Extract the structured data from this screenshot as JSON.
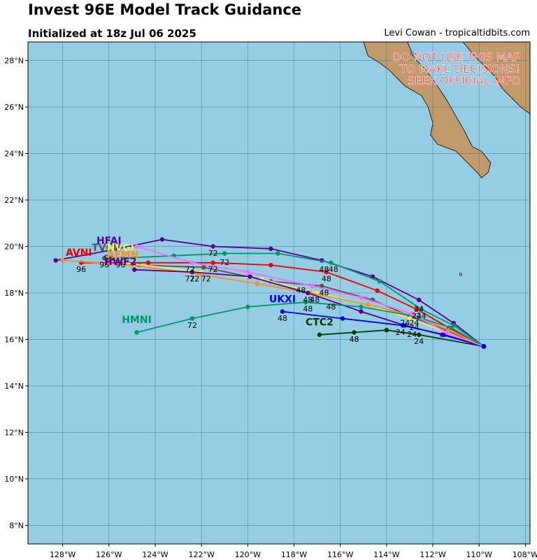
{
  "header": {
    "title": "Invest 96E Model Track Guidance",
    "subtitle": "Initialized at 18z Jul 06 2025",
    "credit": "Levi Cowan - tropicaltidbits.com"
  },
  "warning": [
    "DO NOT USE THIS MAP",
    "TO MAKE DECISIONS!",
    "SEEK OFFICIAL INFO"
  ],
  "colors": {
    "ocean": "#94cde4",
    "land": "#c19a6b",
    "grid": "#3f6f82",
    "warning": "#ff2020"
  },
  "map": {
    "lon_range": [
      -129.5,
      -107.8
    ],
    "lat_range": [
      7.2,
      28.8
    ],
    "lon_ticks": [
      -128,
      -126,
      -124,
      -122,
      -120,
      -118,
      -116,
      -114,
      -112,
      -110,
      -108
    ],
    "lon_tick_labels": [
      "128°W",
      "126°W",
      "124°W",
      "122°W",
      "120°W",
      "118°W",
      "116°W",
      "114°W",
      "112°W",
      "110°W",
      "108°W"
    ],
    "lat_ticks": [
      8,
      10,
      12,
      14,
      16,
      18,
      20,
      22,
      24,
      26,
      28
    ],
    "lat_tick_labels": [
      "8°N",
      "10°N",
      "12°N",
      "14°N",
      "16°N",
      "18°N",
      "20°N",
      "22°N",
      "24°N",
      "26°N",
      "28°N"
    ]
  },
  "chart_data": {
    "type": "map-tracks",
    "start": [
      -109.8,
      15.7
    ],
    "tracks": [
      {
        "name": "HFAI",
        "color": "#5a0096",
        "label_lonlat": [
          -126.0,
          20.1
        ],
        "points": [
          [
            -111.1,
            16.7
          ],
          [
            -112.6,
            17.7
          ],
          [
            -114.6,
            18.7
          ],
          [
            -116.8,
            19.4
          ],
          [
            -119.0,
            19.9
          ],
          [
            -121.5,
            20.0
          ],
          [
            -123.7,
            20.3
          ],
          [
            -125.6,
            19.9
          ],
          [
            -128.3,
            19.4
          ]
        ]
      },
      {
        "name": "AVNI",
        "color": "#f00000",
        "label_lonlat": [
          -127.3,
          19.6
        ],
        "points": [
          [
            -111.3,
            16.5
          ],
          [
            -112.7,
            17.3
          ],
          [
            -114.4,
            18.1
          ],
          [
            -116.6,
            18.9
          ],
          [
            -119.0,
            19.2
          ],
          [
            -121.5,
            19.3
          ],
          [
            -124.3,
            19.3
          ],
          [
            -127.2,
            19.3
          ]
        ]
      },
      {
        "name": "TVCN",
        "color": "#555555",
        "label_lonlat": [
          -126.1,
          19.8
        ],
        "points": [
          [
            -111.4,
            16.4
          ],
          [
            -113.0,
            17.0
          ],
          [
            -114.6,
            17.7
          ],
          [
            -116.8,
            18.3
          ],
          [
            -119.0,
            18.5
          ],
          [
            -121.9,
            19.1
          ],
          [
            -124.7,
            19.2
          ],
          [
            -126.2,
            19.5
          ]
        ]
      },
      {
        "name": "NVGI",
        "color": "#e9ee5a",
        "label_lonlat": [
          -125.5,
          19.8
        ],
        "points": [
          [
            -111.4,
            16.3
          ],
          [
            -113.0,
            16.9
          ],
          [
            -114.8,
            17.5
          ],
          [
            -117.0,
            18.0
          ],
          [
            -119.4,
            18.6
          ],
          [
            -122.0,
            18.9
          ],
          [
            -125.4,
            19.3
          ]
        ]
      },
      {
        "name": "AEMN",
        "color": "#ff8c1a",
        "label_lonlat": [
          -125.4,
          19.5
        ],
        "points": [
          [
            -111.3,
            16.4
          ],
          [
            -112.8,
            17.0
          ],
          [
            -114.8,
            17.5
          ],
          [
            -117.3,
            18.0
          ],
          [
            -119.6,
            18.4
          ],
          [
            -122.1,
            18.8
          ],
          [
            -125.0,
            19.2
          ],
          [
            -128.0,
            19.4
          ]
        ]
      },
      {
        "name": "HWF2",
        "color": "#5a0096",
        "label_lonlat": [
          -125.5,
          19.2
        ],
        "points": [
          [
            -111.6,
            16.2
          ],
          [
            -113.2,
            16.6
          ],
          [
            -115.1,
            17.2
          ],
          [
            -117.4,
            18.0
          ],
          [
            -119.9,
            18.7
          ],
          [
            -122.4,
            18.9
          ],
          [
            -124.9,
            19.0
          ]
        ]
      },
      {
        "name": "UKXI",
        "color": "#0000ee",
        "label_lonlat": [
          -118.5,
          17.6
        ],
        "points": [
          [
            -111.5,
            16.2
          ],
          [
            -113.3,
            16.6
          ],
          [
            -115.9,
            16.9
          ],
          [
            -118.5,
            17.2
          ]
        ]
      },
      {
        "name": "CTC2",
        "color": "#003c00",
        "label_lonlat": [
          -116.9,
          16.6
        ],
        "points": [
          [
            -112.6,
            16.2
          ],
          [
            -114.0,
            16.4
          ],
          [
            -115.4,
            16.3
          ],
          [
            -116.9,
            16.2
          ]
        ]
      },
      {
        "name": "HMNI",
        "color": "#009966",
        "label_lonlat": [
          -124.8,
          16.7
        ],
        "points": [
          [
            -111.2,
            16.5
          ],
          [
            -112.8,
            17.0
          ],
          [
            -115.1,
            17.4
          ],
          [
            -117.5,
            17.6
          ],
          [
            -120.0,
            17.4
          ],
          [
            -122.4,
            16.9
          ],
          [
            -124.8,
            16.3
          ]
        ]
      },
      {
        "name": "",
        "color": "#009966",
        "points": [
          [
            -111.1,
            16.6
          ],
          [
            -112.5,
            17.3
          ],
          [
            -114.3,
            18.5
          ],
          [
            -116.4,
            19.3
          ],
          [
            -118.7,
            19.7
          ],
          [
            -121.0,
            19.7
          ],
          [
            -123.2,
            19.6
          ],
          [
            -125.4,
            19.5
          ]
        ]
      },
      {
        "name": "",
        "color": "#ff66ff",
        "points": [
          [
            -111.4,
            16.3
          ],
          [
            -112.9,
            17.1
          ],
          [
            -115.1,
            17.8
          ],
          [
            -117.2,
            18.3
          ],
          [
            -120.0,
            18.9
          ],
          [
            -122.4,
            19.3
          ],
          [
            -124.8,
            20.0
          ]
        ]
      }
    ],
    "hour_labels": [
      {
        "text": "24",
        "lonlat": [
          -112.6,
          17.2
        ]
      },
      {
        "text": "24",
        "lonlat": [
          -112.5,
          16.9
        ]
      },
      {
        "text": "24",
        "lonlat": [
          -112.7,
          16.9
        ]
      },
      {
        "text": "24",
        "lonlat": [
          -113.2,
          16.6
        ]
      },
      {
        "text": "24",
        "lonlat": [
          -112.8,
          16.6
        ]
      },
      {
        "text": "24",
        "lonlat": [
          -113.4,
          16.2
        ]
      },
      {
        "text": "24",
        "lonlat": [
          -112.9,
          16.1
        ]
      },
      {
        "text": "24",
        "lonlat": [
          -112.6,
          15.8
        ]
      },
      {
        "text": "24",
        "lonlat": [
          -112.8,
          16.4
        ]
      },
      {
        "text": "48",
        "lonlat": [
          -116.7,
          18.9
        ]
      },
      {
        "text": "48",
        "lonlat": [
          -116.3,
          18.9
        ]
      },
      {
        "text": "48",
        "lonlat": [
          -116.6,
          18.5
        ]
      },
      {
        "text": "48",
        "lonlat": [
          -117.7,
          18.0
        ]
      },
      {
        "text": "48",
        "lonlat": [
          -116.7,
          17.9
        ]
      },
      {
        "text": "48",
        "lonlat": [
          -117.4,
          17.6
        ]
      },
      {
        "text": "48",
        "lonlat": [
          -117.1,
          17.6
        ]
      },
      {
        "text": "48",
        "lonlat": [
          -117.4,
          17.2
        ]
      },
      {
        "text": "48",
        "lonlat": [
          -116.4,
          17.3
        ]
      },
      {
        "text": "48",
        "lonlat": [
          -118.5,
          16.8
        ]
      },
      {
        "text": "48",
        "lonlat": [
          -115.4,
          15.9
        ]
      },
      {
        "text": "72",
        "lonlat": [
          -121.5,
          19.6
        ]
      },
      {
        "text": "72",
        "lonlat": [
          -121.0,
          19.2
        ]
      },
      {
        "text": "72",
        "lonlat": [
          -122.5,
          18.9
        ]
      },
      {
        "text": "72",
        "lonlat": [
          -121.5,
          18.9
        ]
      },
      {
        "text": "72",
        "lonlat": [
          -122.5,
          18.5
        ]
      },
      {
        "text": "72",
        "lonlat": [
          -122.3,
          18.5
        ]
      },
      {
        "text": "72",
        "lonlat": [
          -121.8,
          18.5
        ]
      },
      {
        "text": "72",
        "lonlat": [
          -122.4,
          16.5
        ]
      },
      {
        "text": "96",
        "lonlat": [
          -126.0,
          19.4
        ]
      },
      {
        "text": "96",
        "lonlat": [
          -126.2,
          19.1
        ]
      },
      {
        "text": "96",
        "lonlat": [
          -125.5,
          19.1
        ]
      },
      {
        "text": "96",
        "lonlat": [
          -127.2,
          18.9
        ]
      }
    ]
  }
}
